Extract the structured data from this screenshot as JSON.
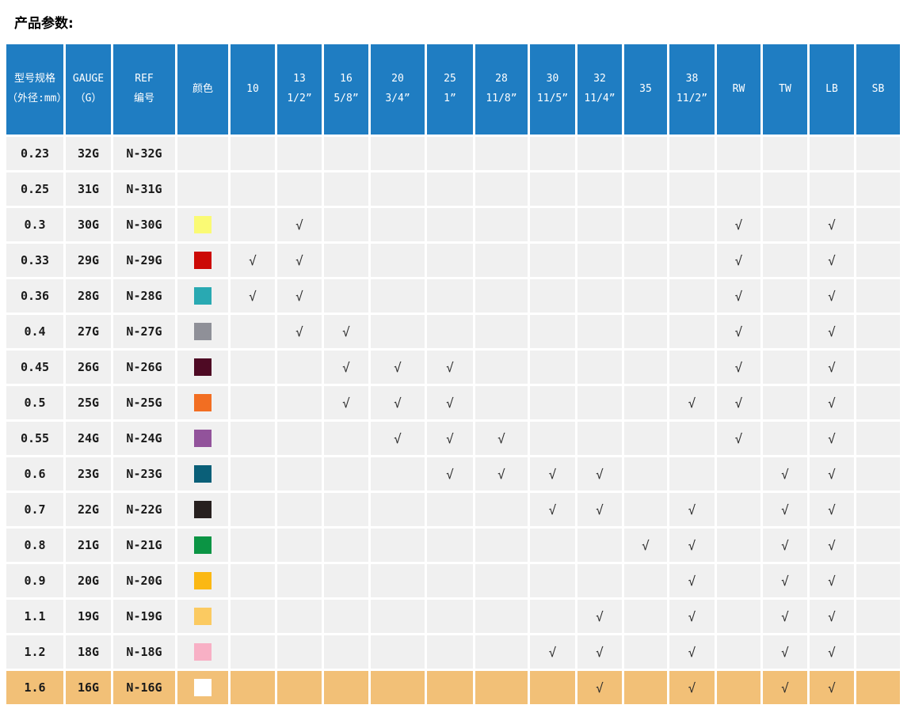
{
  "page": {
    "title": "产品参数:"
  },
  "colors": {
    "header_bg": "#1F7DC2",
    "row_bg": "#F0F0F0",
    "highlight_row_bg": "#F2C077",
    "grid": "#FFFFFF"
  },
  "table": {
    "check_mark": "√",
    "header": {
      "model_spec": [
        "型号规格",
        "（外径:mm）"
      ],
      "gauge": [
        "GAUGE",
        "（G）"
      ],
      "ref": [
        "REF",
        "编号"
      ],
      "color": "颜色",
      "size_columns": [
        {
          "line1": "10",
          "line2": ""
        },
        {
          "line1": "13",
          "line2": "1/2”"
        },
        {
          "line1": "16",
          "line2": "5/8”"
        },
        {
          "line1": "20",
          "line2": "3/4”"
        },
        {
          "line1": "25",
          "line2": "1”"
        },
        {
          "line1": "28",
          "line2": "11/8”"
        },
        {
          "line1": "30",
          "line2": "11/5”"
        },
        {
          "line1": "32",
          "line2": "11/4”"
        },
        {
          "line1": "35",
          "line2": ""
        },
        {
          "line1": "38",
          "line2": "11/2”"
        },
        {
          "line1": "RW",
          "line2": ""
        },
        {
          "line1": "TW",
          "line2": ""
        },
        {
          "line1": "LB",
          "line2": ""
        },
        {
          "line1": "SB",
          "line2": ""
        }
      ]
    },
    "column_keys": [
      "10",
      "13",
      "16",
      "20",
      "25",
      "28",
      "30",
      "32",
      "35",
      "38",
      "RW",
      "TW",
      "LB",
      "SB"
    ],
    "rows": [
      {
        "model": "0.23",
        "gauge": "32G",
        "ref": "N-32G",
        "color": null,
        "checks": [],
        "highlighted": false
      },
      {
        "model": "0.25",
        "gauge": "31G",
        "ref": "N-31G",
        "color": null,
        "checks": [],
        "highlighted": false
      },
      {
        "model": "0.3",
        "gauge": "30G",
        "ref": "N-30G",
        "color": "#FAFA74",
        "checks": [
          "13",
          "RW",
          "LB"
        ],
        "highlighted": false
      },
      {
        "model": "0.33",
        "gauge": "29G",
        "ref": "N-29G",
        "color": "#CC0A06",
        "checks": [
          "10",
          "13",
          "RW",
          "LB"
        ],
        "highlighted": false
      },
      {
        "model": "0.36",
        "gauge": "28G",
        "ref": "N-28G",
        "color": "#29A9B2",
        "checks": [
          "10",
          "13",
          "RW",
          "LB"
        ],
        "highlighted": false
      },
      {
        "model": "0.4",
        "gauge": "27G",
        "ref": "N-27G",
        "color": "#8F9098",
        "checks": [
          "13",
          "16",
          "RW",
          "LB"
        ],
        "highlighted": false
      },
      {
        "model": "0.45",
        "gauge": "26G",
        "ref": "N-26G",
        "color": "#4E0A24",
        "checks": [
          "16",
          "20",
          "25",
          "RW",
          "LB"
        ],
        "highlighted": false
      },
      {
        "model": "0.5",
        "gauge": "25G",
        "ref": "N-25G",
        "color": "#F26E22",
        "checks": [
          "16",
          "20",
          "25",
          "38",
          "RW",
          "LB"
        ],
        "highlighted": false
      },
      {
        "model": "0.55",
        "gauge": "24G",
        "ref": "N-24G",
        "color": "#92539B",
        "checks": [
          "20",
          "25",
          "28",
          "RW",
          "LB"
        ],
        "highlighted": false
      },
      {
        "model": "0.6",
        "gauge": "23G",
        "ref": "N-23G",
        "color": "#0A5F78",
        "checks": [
          "25",
          "28",
          "30",
          "32",
          "TW",
          "LB"
        ],
        "highlighted": false
      },
      {
        "model": "0.7",
        "gauge": "22G",
        "ref": "N-22G",
        "color": "#27201F",
        "checks": [
          "30",
          "32",
          "38",
          "TW",
          "LB"
        ],
        "highlighted": false
      },
      {
        "model": "0.8",
        "gauge": "21G",
        "ref": "N-21G",
        "color": "#0B9444",
        "checks": [
          "35",
          "38",
          "TW",
          "LB"
        ],
        "highlighted": false
      },
      {
        "model": "0.9",
        "gauge": "20G",
        "ref": "N-20G",
        "color": "#FBB813",
        "checks": [
          "38",
          "TW",
          "LB"
        ],
        "highlighted": false
      },
      {
        "model": "1.1",
        "gauge": "19G",
        "ref": "N-19G",
        "color": "#FBCA61",
        "checks": [
          "32",
          "38",
          "TW",
          "LB"
        ],
        "highlighted": false
      },
      {
        "model": "1.2",
        "gauge": "18G",
        "ref": "N-18G",
        "color": "#F8B0C5",
        "checks": [
          "30",
          "32",
          "38",
          "TW",
          "LB"
        ],
        "highlighted": false
      },
      {
        "model": "1.6",
        "gauge": "16G",
        "ref": "N-16G",
        "color": "#FFFFFF",
        "checks": [
          "32",
          "38",
          "TW",
          "LB"
        ],
        "highlighted": true
      }
    ]
  }
}
